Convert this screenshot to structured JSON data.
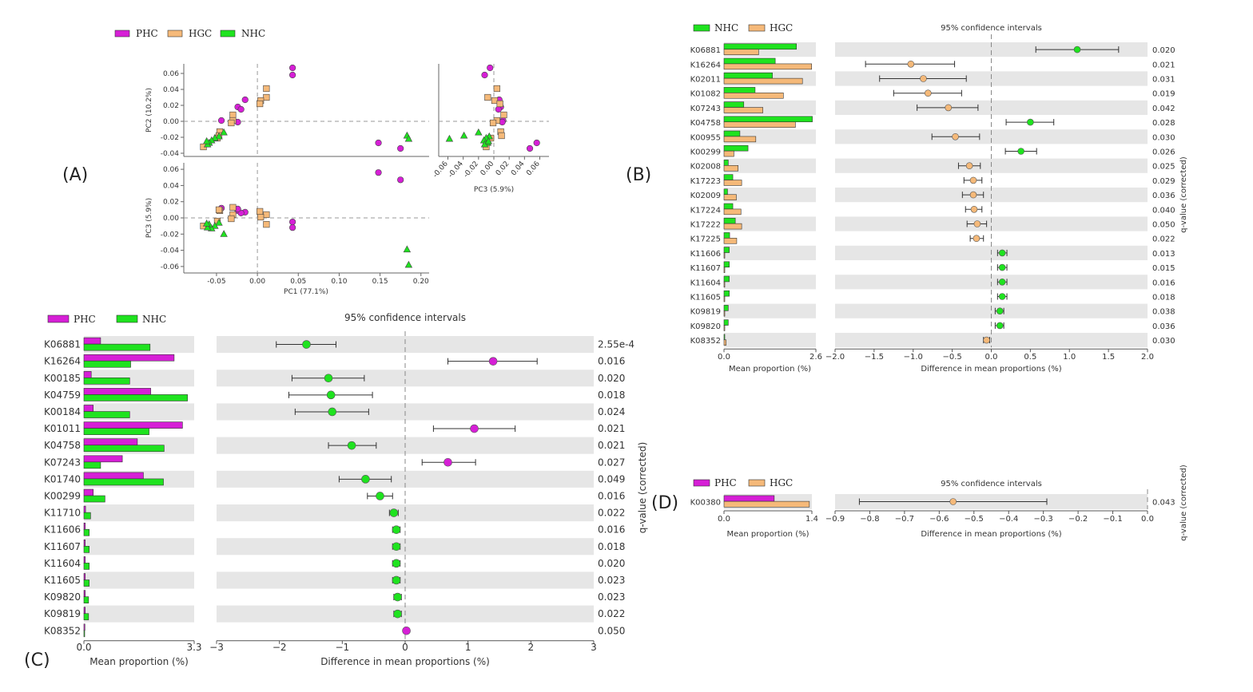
{
  "colors": {
    "PHC": "#d61fd6",
    "HGC": "#f5b979",
    "NHC": "#1fe31f",
    "band": "#e6e6e6"
  },
  "chart_data": [
    {
      "id": "A",
      "panel_label": "(A)",
      "type": "scatter",
      "legend": [
        "PHC",
        "HGC",
        "NHC"
      ],
      "pc1_label": "PC1 (77.1%)",
      "pc2_label": "PC2 (10.2%)",
      "pc3_label": "PC3 (5.9%)",
      "pc1_ticks": [
        "-0.05",
        "0.00",
        "0.05",
        "0.10",
        "0.15",
        "0.20"
      ],
      "pc1_tick_values": [
        -0.05,
        0.0,
        0.05,
        0.1,
        0.15,
        0.2
      ],
      "pc2_ticks": [
        "0.06",
        "0.04",
        "0.02",
        "0.00",
        "-0.02",
        "-0.04"
      ],
      "pc2_tick_values": [
        0.06,
        0.04,
        0.02,
        0.0,
        -0.02,
        -0.04
      ],
      "pc3_ticks": [
        "0.06",
        "0.04",
        "0.02",
        "0.00",
        "-0.02",
        "-0.04",
        "-0.06"
      ],
      "pc3_tick_values": [
        0.06,
        0.04,
        0.02,
        0.0,
        -0.02,
        -0.04,
        -0.06
      ],
      "pc3x_ticks": [
        "-0.06",
        "-0.04",
        "-0.02",
        "0.00",
        "0.02",
        "0.04",
        "0.06"
      ],
      "pc3x_tick_values": [
        -0.06,
        -0.04,
        -0.02,
        0.0,
        0.02,
        0.04,
        0.06
      ],
      "xlim": [
        -0.09,
        0.21
      ],
      "pc2_lim": [
        -0.044,
        0.072
      ],
      "pc3_lim": [
        -0.068,
        0.068
      ],
      "points": [
        {
          "g": "PHC",
          "pc1": 0.043,
          "pc2": 0.067,
          "pc3": -0.005
        },
        {
          "g": "PHC",
          "pc1": 0.043,
          "pc2": 0.058,
          "pc3": -0.012
        },
        {
          "g": "PHC",
          "pc1": -0.015,
          "pc2": 0.027,
          "pc3": 0.007
        },
        {
          "g": "PHC",
          "pc1": -0.024,
          "pc2": 0.018,
          "pc3": 0.009
        },
        {
          "g": "PHC",
          "pc1": -0.02,
          "pc2": 0.015,
          "pc3": 0.006
        },
        {
          "g": "PHC",
          "pc1": -0.044,
          "pc2": 0.001,
          "pc3": 0.012
        },
        {
          "g": "PHC",
          "pc1": -0.024,
          "pc2": -0.001,
          "pc3": 0.011
        },
        {
          "g": "PHC",
          "pc1": 0.148,
          "pc2": -0.027,
          "pc3": 0.056
        },
        {
          "g": "PHC",
          "pc1": 0.175,
          "pc2": -0.034,
          "pc3": 0.047
        },
        {
          "g": "HGC",
          "pc1": 0.011,
          "pc2": 0.041,
          "pc3": 0.004
        },
        {
          "g": "HGC",
          "pc1": 0.011,
          "pc2": 0.03,
          "pc3": -0.008
        },
        {
          "g": "HGC",
          "pc1": 0.004,
          "pc2": 0.026,
          "pc3": 0.001
        },
        {
          "g": "HGC",
          "pc1": 0.003,
          "pc2": 0.022,
          "pc3": 0.008
        },
        {
          "g": "HGC",
          "pc1": -0.03,
          "pc2": 0.008,
          "pc3": 0.013
        },
        {
          "g": "HGC",
          "pc1": -0.03,
          "pc2": 0.001,
          "pc3": 0.004
        },
        {
          "g": "HGC",
          "pc1": -0.046,
          "pc2": -0.013,
          "pc3": 0.009
        },
        {
          "g": "HGC",
          "pc1": -0.047,
          "pc2": -0.018,
          "pc3": 0.01
        },
        {
          "g": "HGC",
          "pc1": -0.049,
          "pc2": -0.021,
          "pc3": -0.004
        },
        {
          "g": "HGC",
          "pc1": -0.066,
          "pc2": -0.032,
          "pc3": -0.01
        },
        {
          "g": "HGC",
          "pc1": -0.032,
          "pc2": -0.002,
          "pc3": -0.001
        },
        {
          "g": "NHC",
          "pc1": 0.183,
          "pc2": -0.018,
          "pc3": -0.039
        },
        {
          "g": "NHC",
          "pc1": 0.185,
          "pc2": -0.022,
          "pc3": -0.058
        },
        {
          "g": "NHC",
          "pc1": -0.041,
          "pc2": -0.014,
          "pc3": -0.02
        },
        {
          "g": "NHC",
          "pc1": -0.047,
          "pc2": -0.019,
          "pc3": -0.006
        },
        {
          "g": "NHC",
          "pc1": -0.052,
          "pc2": -0.021,
          "pc3": -0.01
        },
        {
          "g": "NHC",
          "pc1": -0.056,
          "pc2": -0.024,
          "pc3": -0.013
        },
        {
          "g": "NHC",
          "pc1": -0.059,
          "pc2": -0.027,
          "pc3": -0.008
        },
        {
          "g": "NHC",
          "pc1": -0.061,
          "pc2": -0.029,
          "pc3": -0.012
        },
        {
          "g": "NHC",
          "pc1": -0.062,
          "pc2": -0.025,
          "pc3": -0.007
        }
      ]
    },
    {
      "id": "B",
      "panel_label": "(B)",
      "type": "bar",
      "title": "95% confidence intervals",
      "legend": [
        "NHC",
        "HGC"
      ],
      "groups": [
        "NHC",
        "HGC"
      ],
      "xlabel_left": "Mean proportion (%)",
      "xlabel_right": "Difference in mean proportions (%)",
      "ylabel_right": "q-value (corrected)",
      "bar_xlim": [
        0,
        2.6
      ],
      "bar_ticks": [
        "0.0",
        "2.6"
      ],
      "diff_xlim": [
        -2.0,
        2.0
      ],
      "diff_ticks": [
        "−2.0",
        "−1.5",
        "−1.0",
        "−0.5",
        "0.0",
        "0.5",
        "1.0",
        "1.5",
        "2.0"
      ],
      "rows": [
        {
          "label": "K06881",
          "a": 2.05,
          "b": 0.98,
          "diff": 1.1,
          "lo": 0.57,
          "hi": 1.63,
          "q": "0.020"
        },
        {
          "label": "K16264",
          "a": 1.45,
          "b": 2.48,
          "diff": -1.03,
          "lo": -1.61,
          "hi": -0.47,
          "q": "0.021"
        },
        {
          "label": "K02011",
          "a": 1.37,
          "b": 2.22,
          "diff": -0.87,
          "lo": -1.43,
          "hi": -0.32,
          "q": "0.031"
        },
        {
          "label": "K01082",
          "a": 0.88,
          "b": 1.68,
          "diff": -0.81,
          "lo": -1.25,
          "hi": -0.38,
          "q": "0.019"
        },
        {
          "label": "K07243",
          "a": 0.56,
          "b": 1.1,
          "diff": -0.55,
          "lo": -0.95,
          "hi": -0.17,
          "q": "0.042"
        },
        {
          "label": "K04758",
          "a": 2.5,
          "b": 2.02,
          "diff": 0.5,
          "lo": 0.19,
          "hi": 0.8,
          "q": "0.028"
        },
        {
          "label": "K00955",
          "a": 0.45,
          "b": 0.9,
          "diff": -0.46,
          "lo": -0.76,
          "hi": -0.15,
          "q": "0.030"
        },
        {
          "label": "K00299",
          "a": 0.68,
          "b": 0.28,
          "diff": 0.38,
          "lo": 0.18,
          "hi": 0.58,
          "q": "0.026"
        },
        {
          "label": "K02008",
          "a": 0.12,
          "b": 0.4,
          "diff": -0.28,
          "lo": -0.42,
          "hi": -0.14,
          "q": "0.025"
        },
        {
          "label": "K17223",
          "a": 0.25,
          "b": 0.5,
          "diff": -0.23,
          "lo": -0.35,
          "hi": -0.12,
          "q": "0.029"
        },
        {
          "label": "K02009",
          "a": 0.1,
          "b": 0.35,
          "diff": -0.23,
          "lo": -0.37,
          "hi": -0.1,
          "q": "0.036"
        },
        {
          "label": "K17224",
          "a": 0.25,
          "b": 0.48,
          "diff": -0.22,
          "lo": -0.33,
          "hi": -0.12,
          "q": "0.040"
        },
        {
          "label": "K17222",
          "a": 0.32,
          "b": 0.5,
          "diff": -0.18,
          "lo": -0.31,
          "hi": -0.06,
          "q": "0.050"
        },
        {
          "label": "K17225",
          "a": 0.16,
          "b": 0.36,
          "diff": -0.19,
          "lo": -0.27,
          "hi": -0.1,
          "q": "0.022"
        },
        {
          "label": "K11606",
          "a": 0.15,
          "b": 0.01,
          "diff": 0.14,
          "lo": 0.08,
          "hi": 0.2,
          "q": "0.013"
        },
        {
          "label": "K11607",
          "a": 0.15,
          "b": 0.01,
          "diff": 0.14,
          "lo": 0.08,
          "hi": 0.2,
          "q": "0.015"
        },
        {
          "label": "K11604",
          "a": 0.15,
          "b": 0.01,
          "diff": 0.14,
          "lo": 0.08,
          "hi": 0.2,
          "q": "0.016"
        },
        {
          "label": "K11605",
          "a": 0.15,
          "b": 0.01,
          "diff": 0.14,
          "lo": 0.08,
          "hi": 0.2,
          "q": "0.018"
        },
        {
          "label": "K09819",
          "a": 0.12,
          "b": 0.01,
          "diff": 0.11,
          "lo": 0.05,
          "hi": 0.16,
          "q": "0.038"
        },
        {
          "label": "K09820",
          "a": 0.12,
          "b": 0.01,
          "diff": 0.11,
          "lo": 0.05,
          "hi": 0.16,
          "q": "0.036"
        },
        {
          "label": "K08352",
          "a": 0.0,
          "b": 0.06,
          "diff": -0.06,
          "lo": -0.1,
          "hi": -0.02,
          "q": "0.030"
        }
      ]
    },
    {
      "id": "C",
      "panel_label": "(C)",
      "type": "bar",
      "title": "95% confidence intervals",
      "legend": [
        "PHC",
        "NHC"
      ],
      "groups": [
        "PHC",
        "NHC"
      ],
      "xlabel_left": "Mean proportion (%)",
      "xlabel_right": "Difference in mean proportions (%)",
      "ylabel_right": "q-value (corrected)",
      "bar_xlim": [
        0,
        3.3
      ],
      "bar_ticks": [
        "0.0",
        "3.3"
      ],
      "diff_xlim": [
        -3,
        3
      ],
      "diff_ticks": [
        "−3",
        "−2",
        "−1",
        "0",
        "1",
        "2",
        "3"
      ],
      "rows": [
        {
          "label": "K06881",
          "a": 0.5,
          "b": 1.98,
          "diff": -1.57,
          "lo": -2.05,
          "hi": -1.1,
          "q": "2.55e-4"
        },
        {
          "label": "K16264",
          "a": 2.7,
          "b": 1.4,
          "diff": 1.4,
          "lo": 0.68,
          "hi": 2.1,
          "q": "0.016"
        },
        {
          "label": "K00185",
          "a": 0.22,
          "b": 1.37,
          "diff": -1.22,
          "lo": -1.8,
          "hi": -0.65,
          "q": "0.020"
        },
        {
          "label": "K04759",
          "a": 2.0,
          "b": 3.1,
          "diff": -1.18,
          "lo": -1.85,
          "hi": -0.52,
          "q": "0.018"
        },
        {
          "label": "K00184",
          "a": 0.28,
          "b": 1.37,
          "diff": -1.16,
          "lo": -1.75,
          "hi": -0.58,
          "q": "0.024"
        },
        {
          "label": "K01011",
          "a": 2.95,
          "b": 1.95,
          "diff": 1.1,
          "lo": 0.45,
          "hi": 1.75,
          "q": "0.021"
        },
        {
          "label": "K04758",
          "a": 1.6,
          "b": 2.4,
          "diff": -0.85,
          "lo": -1.22,
          "hi": -0.46,
          "q": "0.021"
        },
        {
          "label": "K07243",
          "a": 1.15,
          "b": 0.5,
          "diff": 0.68,
          "lo": 0.27,
          "hi": 1.12,
          "q": "0.027"
        },
        {
          "label": "K01740",
          "a": 1.78,
          "b": 2.38,
          "diff": -0.63,
          "lo": -1.05,
          "hi": -0.22,
          "q": "0.049"
        },
        {
          "label": "K00299",
          "a": 0.28,
          "b": 0.63,
          "diff": -0.4,
          "lo": -0.6,
          "hi": -0.2,
          "q": "0.016"
        },
        {
          "label": "K11710",
          "a": 0.05,
          "b": 0.2,
          "diff": -0.18,
          "lo": -0.25,
          "hi": -0.11,
          "q": "0.022"
        },
        {
          "label": "K11606",
          "a": 0.04,
          "b": 0.16,
          "diff": -0.14,
          "lo": -0.2,
          "hi": -0.08,
          "q": "0.016"
        },
        {
          "label": "K11607",
          "a": 0.04,
          "b": 0.16,
          "diff": -0.14,
          "lo": -0.2,
          "hi": -0.08,
          "q": "0.018"
        },
        {
          "label": "K11604",
          "a": 0.04,
          "b": 0.16,
          "diff": -0.14,
          "lo": -0.2,
          "hi": -0.08,
          "q": "0.020"
        },
        {
          "label": "K11605",
          "a": 0.04,
          "b": 0.16,
          "diff": -0.14,
          "lo": -0.2,
          "hi": -0.08,
          "q": "0.023"
        },
        {
          "label": "K09820",
          "a": 0.04,
          "b": 0.14,
          "diff": -0.12,
          "lo": -0.18,
          "hi": -0.06,
          "q": "0.023"
        },
        {
          "label": "K09819",
          "a": 0.04,
          "b": 0.14,
          "diff": -0.12,
          "lo": -0.18,
          "hi": -0.06,
          "q": "0.022"
        },
        {
          "label": "K08352",
          "a": 0.03,
          "b": 0.0,
          "diff": 0.02,
          "lo": 0.0,
          "hi": 0.04,
          "q": "0.050"
        }
      ]
    },
    {
      "id": "D",
      "panel_label": "(D)",
      "type": "bar",
      "title": "95% confidence intervals",
      "legend": [
        "PHC",
        "HGC"
      ],
      "groups": [
        "PHC",
        "HGC"
      ],
      "xlabel_left": "Mean proportion (%)",
      "xlabel_right": "Difference in mean proportions (%)",
      "ylabel_right": "q-value (corrected)",
      "bar_xlim": [
        0,
        1.4
      ],
      "bar_ticks": [
        "0.0",
        "1.4"
      ],
      "diff_xlim": [
        -0.9,
        0.0
      ],
      "diff_ticks": [
        "−0.9",
        "−0.8",
        "−0.7",
        "−0.6",
        "−0.5",
        "−0.4",
        "−0.3",
        "−0.2",
        "−0.1",
        "0.0"
      ],
      "rows": [
        {
          "label": "K00380",
          "a": 0.8,
          "b": 1.36,
          "diff": -0.56,
          "lo": -0.83,
          "hi": -0.29,
          "q": "0.043"
        }
      ]
    }
  ]
}
